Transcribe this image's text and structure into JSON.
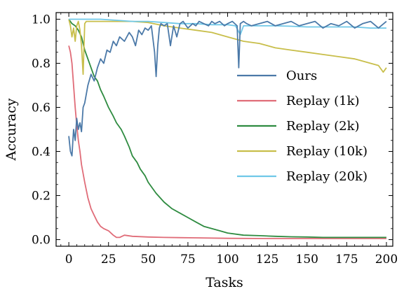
{
  "chart_data": {
    "type": "line",
    "xlabel": "Tasks",
    "ylabel": "Accuracy",
    "xlim": [
      -8,
      204
    ],
    "ylim": [
      -0.03,
      1.03
    ],
    "xticks": [
      0,
      25,
      50,
      75,
      100,
      125,
      150,
      175,
      200
    ],
    "yticks": [
      0.0,
      0.2,
      0.4,
      0.6,
      0.8,
      1.0
    ],
    "ytick_labels": [
      "0.0",
      "0.2",
      "0.4",
      "0.6",
      "0.8",
      "1.0"
    ],
    "grid": false,
    "legend_position": "center-right",
    "series": [
      {
        "name": "Ours",
        "color": "#4b79a8",
        "x": [
          0,
          1,
          2,
          3,
          4,
          5,
          6,
          7,
          8,
          9,
          10,
          12,
          14,
          16,
          18,
          20,
          22,
          24,
          26,
          28,
          30,
          32,
          35,
          38,
          40,
          42,
          44,
          46,
          48,
          50,
          52,
          54,
          55,
          56,
          57,
          58,
          60,
          62,
          64,
          66,
          68,
          70,
          72,
          75,
          78,
          80,
          82,
          85,
          88,
          90,
          92,
          95,
          98,
          100,
          103,
          106,
          107,
          108,
          110,
          112,
          115,
          120,
          125,
          130,
          135,
          140,
          145,
          150,
          155,
          160,
          165,
          170,
          175,
          180,
          185,
          190,
          195,
          200
        ],
        "y": [
          0.47,
          0.4,
          0.38,
          0.5,
          0.45,
          0.55,
          0.5,
          0.53,
          0.49,
          0.6,
          0.62,
          0.7,
          0.75,
          0.72,
          0.78,
          0.82,
          0.8,
          0.86,
          0.85,
          0.9,
          0.88,
          0.92,
          0.9,
          0.94,
          0.92,
          0.88,
          0.95,
          0.93,
          0.96,
          0.95,
          0.97,
          0.85,
          0.74,
          0.88,
          0.96,
          0.98,
          0.97,
          0.98,
          0.88,
          0.97,
          0.92,
          0.98,
          0.99,
          0.96,
          0.98,
          0.97,
          0.99,
          0.98,
          0.97,
          0.99,
          0.98,
          0.99,
          0.97,
          0.98,
          0.99,
          0.97,
          0.78,
          0.98,
          0.99,
          0.98,
          0.97,
          0.98,
          0.99,
          0.97,
          0.98,
          0.99,
          0.97,
          0.98,
          0.99,
          0.96,
          0.98,
          0.97,
          0.99,
          0.96,
          0.98,
          0.99,
          0.96,
          0.99
        ]
      },
      {
        "name": "Replay (1k)",
        "color": "#e06c78",
        "x": [
          0,
          1,
          2,
          3,
          4,
          5,
          6,
          7,
          8,
          9,
          10,
          12,
          14,
          16,
          18,
          20,
          22,
          25,
          28,
          30,
          32,
          35,
          40,
          50,
          60,
          80,
          100,
          125,
          150,
          175,
          200
        ],
        "y": [
          0.88,
          0.85,
          0.8,
          0.7,
          0.6,
          0.52,
          0.45,
          0.4,
          0.34,
          0.3,
          0.26,
          0.19,
          0.14,
          0.11,
          0.08,
          0.06,
          0.05,
          0.04,
          0.02,
          0.01,
          0.01,
          0.02,
          0.015,
          0.012,
          0.01,
          0.008,
          0.006,
          0.005,
          0.005,
          0.005,
          0.005
        ]
      },
      {
        "name": "Replay (2k)",
        "color": "#2e8b40",
        "x": [
          0,
          2,
          4,
          6,
          8,
          10,
          12,
          14,
          16,
          18,
          20,
          22,
          25,
          28,
          30,
          33,
          35,
          38,
          40,
          43,
          45,
          48,
          50,
          55,
          60,
          65,
          70,
          75,
          80,
          85,
          90,
          95,
          100,
          110,
          120,
          130,
          140,
          150,
          160,
          170,
          180,
          190,
          200
        ],
        "y": [
          1.0,
          0.98,
          0.97,
          0.95,
          0.92,
          0.86,
          0.82,
          0.78,
          0.74,
          0.72,
          0.68,
          0.65,
          0.6,
          0.56,
          0.53,
          0.5,
          0.47,
          0.42,
          0.38,
          0.35,
          0.32,
          0.29,
          0.26,
          0.21,
          0.17,
          0.14,
          0.12,
          0.1,
          0.08,
          0.06,
          0.05,
          0.04,
          0.03,
          0.02,
          0.018,
          0.015,
          0.013,
          0.012,
          0.01,
          0.01,
          0.01,
          0.01,
          0.01
        ]
      },
      {
        "name": "Replay (10k)",
        "color": "#c8be4a",
        "x": [
          0,
          1,
          2,
          3,
          4,
          5,
          6,
          7,
          8,
          9,
          10,
          11,
          12,
          15,
          20,
          30,
          40,
          50,
          60,
          70,
          80,
          90,
          100,
          110,
          120,
          130,
          140,
          150,
          160,
          170,
          180,
          190,
          195,
          198,
          200
        ],
        "y": [
          1.0,
          0.97,
          0.92,
          0.96,
          0.9,
          0.97,
          0.99,
          0.95,
          0.88,
          0.75,
          0.98,
          0.99,
          0.99,
          0.99,
          0.99,
          0.99,
          0.99,
          0.985,
          0.97,
          0.96,
          0.95,
          0.94,
          0.92,
          0.9,
          0.89,
          0.87,
          0.86,
          0.85,
          0.84,
          0.83,
          0.82,
          0.8,
          0.79,
          0.76,
          0.78
        ]
      },
      {
        "name": "Replay (20k)",
        "color": "#6fc8e8",
        "x": [
          0,
          10,
          20,
          30,
          40,
          50,
          60,
          70,
          80,
          90,
          100,
          105,
          108,
          110,
          115,
          120,
          130,
          140,
          150,
          160,
          170,
          180,
          190,
          200
        ],
        "y": [
          1.0,
          1.0,
          1.0,
          0.995,
          0.99,
          0.99,
          0.985,
          0.98,
          0.98,
          0.975,
          0.975,
          0.97,
          0.93,
          0.97,
          0.97,
          0.97,
          0.97,
          0.968,
          0.965,
          0.965,
          0.965,
          0.965,
          0.96,
          0.96
        ]
      }
    ]
  }
}
